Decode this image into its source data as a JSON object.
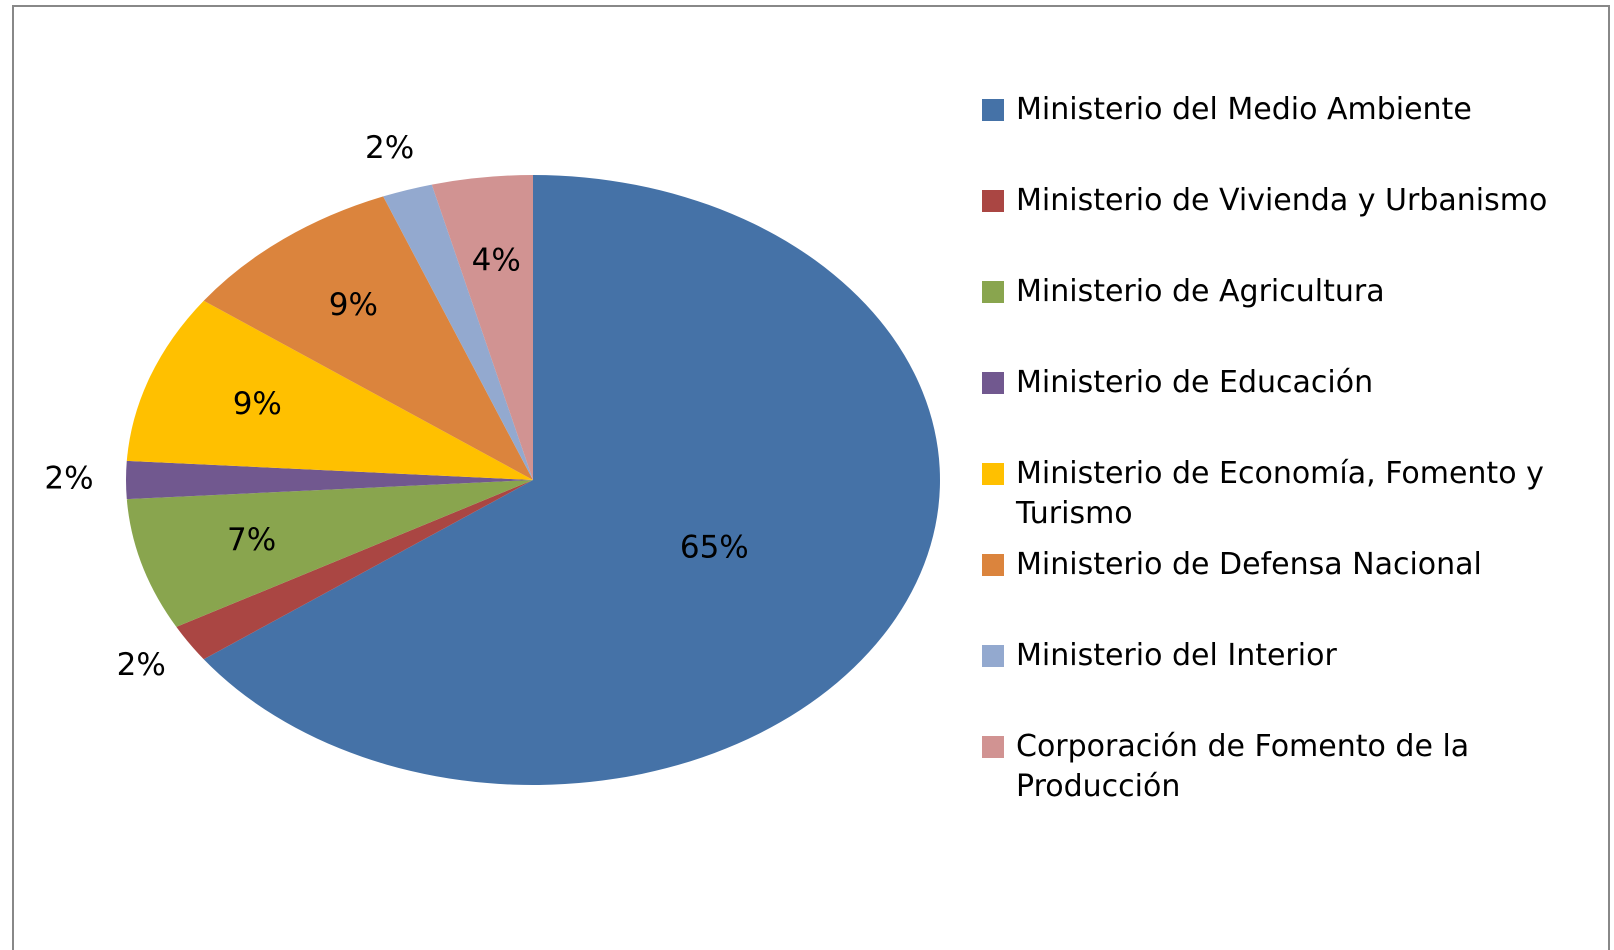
{
  "chart_data": {
    "type": "pie",
    "categories": [
      "Ministerio del Medio Ambiente",
      "Ministerio de Vivienda y Urbanismo",
      "Ministerio de Agricultura",
      "Ministerio de Educación",
      "Ministerio de Economía, Fomento y Turismo",
      "Ministerio de Defensa Nacional",
      "Ministerio del Interior",
      "Corporación de Fomento de la Producción"
    ],
    "values": [
      65,
      2,
      7,
      2,
      9,
      9,
      2,
      4
    ],
    "value_labels": [
      "65%",
      "2%",
      "7%",
      "2%",
      "9%",
      "9%",
      "2%",
      "4%"
    ],
    "colors": [
      "#4572a7",
      "#aa4643",
      "#89a54e",
      "#71588f",
      "#ffc000",
      "#db843d",
      "#93a9cf",
      "#d19392"
    ],
    "legend": "right"
  }
}
